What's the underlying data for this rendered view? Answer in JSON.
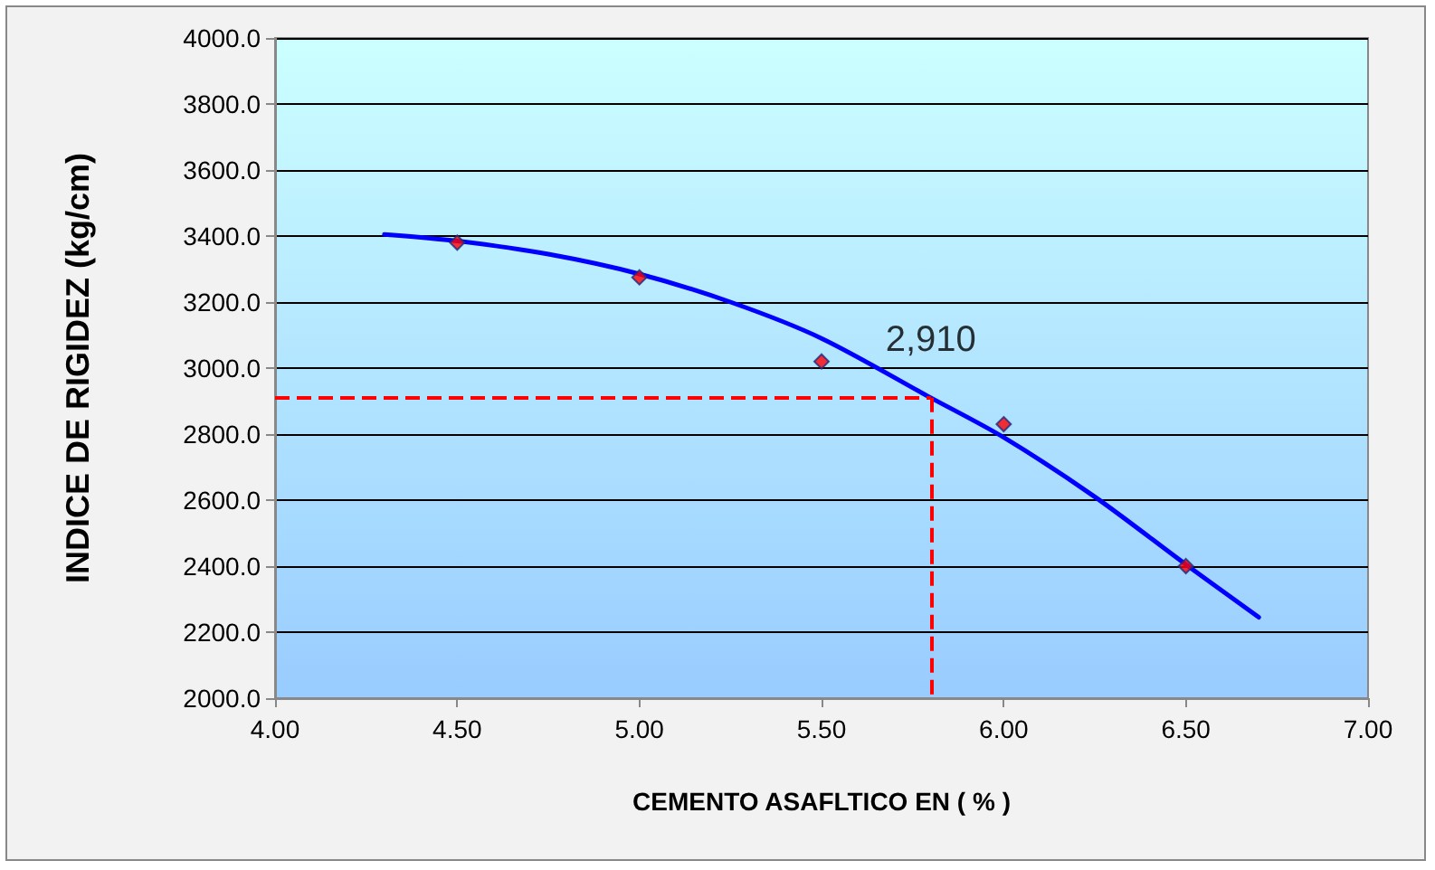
{
  "chart_data": {
    "type": "scatter",
    "xlabel": "CEMENTO ASAFLTICO EN ( % )",
    "ylabel": "INDICE DE RIGIDEZ (kg/cm)",
    "series": [
      {
        "color": "#ff0000",
        "marker": "diamond",
        "x": [
          4.5,
          5.0,
          5.5,
          6.0,
          6.5
        ],
        "values": [
          3380,
          3275,
          3020,
          2830,
          2400
        ]
      },
      {
        "type": "line",
        "color": "#0000ff",
        "marker": "none",
        "x": [
          4.3,
          4.5,
          4.75,
          5.0,
          5.25,
          5.5,
          5.8,
          6.0,
          6.25,
          6.5,
          6.7
        ],
        "values": [
          3405,
          3385,
          3345,
          3285,
          3200,
          3090,
          2910,
          2790,
          2610,
          2405,
          2245
        ]
      }
    ],
    "xlim": [
      4,
      7
    ],
    "xticks": [
      {
        "value": 4,
        "label": "4.00"
      },
      {
        "value": 4.5,
        "label": "4.50"
      },
      {
        "value": 5,
        "label": "5.00"
      },
      {
        "value": 5.5,
        "label": "5.50"
      },
      {
        "value": 6,
        "label": "6.00"
      },
      {
        "value": 6.5,
        "label": "6.50"
      },
      {
        "value": 7,
        "label": "7.00"
      }
    ],
    "ylim": [
      2000,
      4000
    ],
    "yticks": [
      {
        "value": 2000,
        "label": "2000.0"
      },
      {
        "value": 2200,
        "label": "2200.0"
      },
      {
        "value": 2400,
        "label": "2400.0"
      },
      {
        "value": 2600,
        "label": "2600.0"
      },
      {
        "value": 2800,
        "label": "2800.0"
      },
      {
        "value": 3000,
        "label": "3000.0"
      },
      {
        "value": 3200,
        "label": "3200.0"
      },
      {
        "value": 3400,
        "label": "3400.0"
      },
      {
        "value": 3600,
        "label": "3600.0"
      },
      {
        "value": 3800,
        "label": "3800.0"
      },
      {
        "value": 4000,
        "label": "4000.0"
      }
    ],
    "ref_lines": [
      {
        "axis": "x",
        "value": 5.8,
        "color": "#ff0000",
        "line_style": "dashed"
      },
      {
        "axis": "y",
        "value": 2910,
        "color": "#ff0000",
        "line_style": "dashed"
      }
    ],
    "annotations": [
      {
        "text": "2,910",
        "x": 5.8,
        "y": 2910
      }
    ],
    "grid": "y"
  }
}
